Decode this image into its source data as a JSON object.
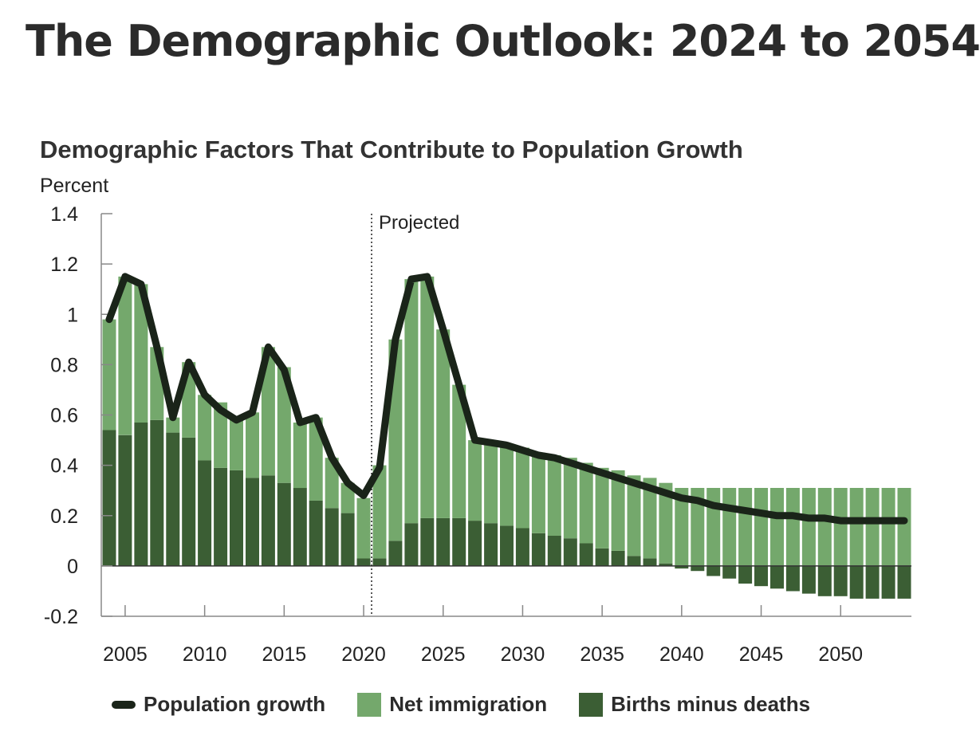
{
  "page_title": "The Demographic Outlook: 2024 to 2054",
  "chart_data": {
    "type": "bar+line",
    "title": "Demographic Factors That Contribute to Population Growth",
    "ylabel": "Percent",
    "xlabel": "",
    "ylim": [
      -0.2,
      1.4
    ],
    "y_ticks": [
      {
        "value": 1.4,
        "label": "1.4"
      },
      {
        "value": 1.2,
        "label": "1.2"
      },
      {
        "value": 1.0,
        "label": "1"
      },
      {
        "value": 0.8,
        "label": "0.8"
      },
      {
        "value": 0.6,
        "label": "0.6"
      },
      {
        "value": 0.4,
        "label": "0.4"
      },
      {
        "value": 0.2,
        "label": "0.2"
      },
      {
        "value": 0.0,
        "label": "0"
      },
      {
        "value": -0.2,
        "label": "-0.2"
      }
    ],
    "x_ticks": [
      {
        "value": 2005,
        "label": "2005"
      },
      {
        "value": 2010,
        "label": "2010"
      },
      {
        "value": 2015,
        "label": "2015"
      },
      {
        "value": 2020,
        "label": "2020"
      },
      {
        "value": 2025,
        "label": "2025"
      },
      {
        "value": 2030,
        "label": "2030"
      },
      {
        "value": 2035,
        "label": "2035"
      },
      {
        "value": 2040,
        "label": "2040"
      },
      {
        "value": 2045,
        "label": "2045"
      },
      {
        "value": 2050,
        "label": "2050"
      }
    ],
    "years": [
      2004,
      2005,
      2006,
      2007,
      2008,
      2009,
      2010,
      2011,
      2012,
      2013,
      2014,
      2015,
      2016,
      2017,
      2018,
      2019,
      2020,
      2021,
      2022,
      2023,
      2024,
      2025,
      2026,
      2027,
      2028,
      2029,
      2030,
      2031,
      2032,
      2033,
      2034,
      2035,
      2036,
      2037,
      2038,
      2039,
      2040,
      2041,
      2042,
      2043,
      2044,
      2045,
      2046,
      2047,
      2048,
      2049,
      2050,
      2051,
      2052,
      2053,
      2054
    ],
    "projection_start": 2020.5,
    "projection_label": "Projected",
    "series": [
      {
        "name": "Births minus deaths",
        "color": "#3b5e34",
        "values": [
          0.54,
          0.52,
          0.57,
          0.58,
          0.53,
          0.51,
          0.42,
          0.39,
          0.38,
          0.35,
          0.36,
          0.33,
          0.31,
          0.26,
          0.23,
          0.21,
          0.03,
          0.03,
          0.1,
          0.17,
          0.19,
          0.19,
          0.19,
          0.18,
          0.17,
          0.16,
          0.15,
          0.13,
          0.12,
          0.11,
          0.09,
          0.07,
          0.06,
          0.04,
          0.03,
          0.01,
          -0.01,
          -0.02,
          -0.04,
          -0.05,
          -0.07,
          -0.08,
          -0.09,
          -0.1,
          -0.11,
          -0.12,
          -0.12,
          -0.13,
          -0.13,
          -0.13,
          -0.13
        ]
      },
      {
        "name": "Net immigration",
        "color": "#74a86c",
        "values": [
          0.44,
          0.63,
          0.55,
          0.29,
          0.06,
          0.3,
          0.26,
          0.26,
          0.2,
          0.26,
          0.51,
          0.46,
          0.26,
          0.33,
          0.2,
          0.12,
          0.24,
          0.37,
          0.8,
          0.97,
          0.96,
          0.75,
          0.53,
          0.32,
          0.32,
          0.32,
          0.32,
          0.32,
          0.32,
          0.32,
          0.32,
          0.32,
          0.32,
          0.32,
          0.32,
          0.32,
          0.31,
          0.31,
          0.31,
          0.31,
          0.31,
          0.31,
          0.31,
          0.31,
          0.31,
          0.31,
          0.31,
          0.31,
          0.31,
          0.31,
          0.31
        ]
      },
      {
        "name": "Population growth",
        "color": "#1a2419",
        "type": "line",
        "values": [
          0.98,
          1.15,
          1.12,
          0.87,
          0.59,
          0.81,
          0.68,
          0.62,
          0.58,
          0.61,
          0.87,
          0.78,
          0.57,
          0.59,
          0.43,
          0.33,
          0.28,
          0.39,
          0.9,
          1.14,
          1.15,
          0.94,
          0.72,
          0.5,
          0.49,
          0.48,
          0.46,
          0.44,
          0.43,
          0.41,
          0.39,
          0.37,
          0.35,
          0.33,
          0.31,
          0.29,
          0.27,
          0.26,
          0.24,
          0.23,
          0.22,
          0.21,
          0.2,
          0.2,
          0.19,
          0.19,
          0.18,
          0.18,
          0.18,
          0.18,
          0.18
        ]
      }
    ],
    "legend": [
      {
        "name": "Population growth",
        "kind": "line",
        "color": "#1a2419"
      },
      {
        "name": "Net immigration",
        "kind": "box",
        "color": "#74a86c"
      },
      {
        "name": "Births minus deaths",
        "kind": "box",
        "color": "#3b5e34"
      }
    ],
    "axis_color": "#888888",
    "projection_line_color": "#222222"
  }
}
